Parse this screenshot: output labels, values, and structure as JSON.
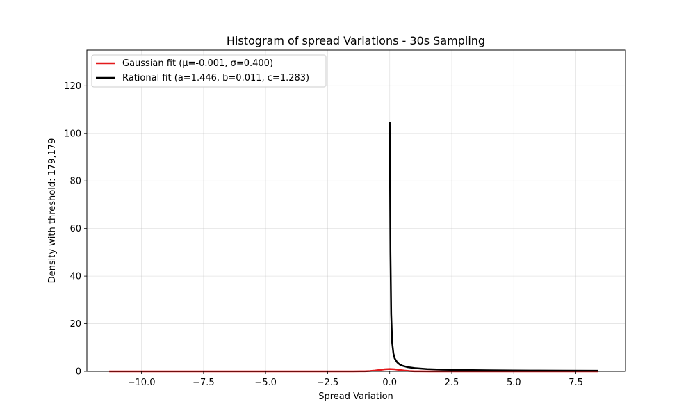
{
  "chart_data": {
    "type": "line",
    "title": "Histogram of spread Variations - 30s Sampling",
    "xlabel": "Spread Variation",
    "ylabel": "Density with threshold: 179,179",
    "xlim": [
      -12.2,
      9.5
    ],
    "ylim": [
      0,
      135
    ],
    "grid": true,
    "legend_position": "top-left",
    "x_ticks": [
      {
        "value": -10.0,
        "label": "−10.0"
      },
      {
        "value": -7.5,
        "label": "−7.5"
      },
      {
        "value": -5.0,
        "label": "−5.0"
      },
      {
        "value": -2.5,
        "label": "−2.5"
      },
      {
        "value": 0.0,
        "label": "0.0"
      },
      {
        "value": 2.5,
        "label": "2.5"
      },
      {
        "value": 5.0,
        "label": "5.0"
      },
      {
        "value": 7.5,
        "label": "7.5"
      }
    ],
    "y_ticks": [
      {
        "value": 0,
        "label": "0"
      },
      {
        "value": 20,
        "label": "20"
      },
      {
        "value": 40,
        "label": "40"
      },
      {
        "value": 60,
        "label": "60"
      },
      {
        "value": 80,
        "label": "80"
      },
      {
        "value": 100,
        "label": "100"
      },
      {
        "value": 120,
        "label": "120"
      }
    ],
    "series": [
      {
        "name": "Gaussian fit (μ=-0.001, σ=0.400)",
        "color": "#e31a1c",
        "x": [
          -11.3,
          -3.0,
          -1.6,
          -1.2,
          -1.0,
          -0.8,
          -0.6,
          -0.4,
          -0.2,
          0.0,
          0.2,
          0.4,
          0.6,
          0.8,
          1.0,
          1.2,
          1.6,
          2.5,
          5.0,
          8.4
        ],
        "y": [
          0.0,
          0.0,
          0.0,
          0.02,
          0.04,
          0.14,
          0.32,
          0.6,
          0.88,
          1.0,
          0.88,
          0.6,
          0.32,
          0.14,
          0.04,
          0.02,
          0.0,
          0.0,
          0.0,
          0.0
        ]
      },
      {
        "name": "Rational fit (a=1.446, b=0.011, c=1.283)",
        "color": "#000000",
        "x": [
          0.0,
          0.03,
          0.06,
          0.1,
          0.15,
          0.2,
          0.3,
          0.4,
          0.5,
          0.7,
          1.0,
          1.5,
          2.0,
          3.0,
          4.0,
          5.0,
          6.0,
          7.0,
          8.4
        ],
        "y": [
          104.8,
          50.0,
          24.0,
          12.0,
          7.5,
          5.5,
          3.8,
          2.9,
          2.4,
          1.8,
          1.35,
          0.95,
          0.75,
          0.55,
          0.45,
          0.38,
          0.32,
          0.28,
          0.24
        ]
      }
    ]
  }
}
